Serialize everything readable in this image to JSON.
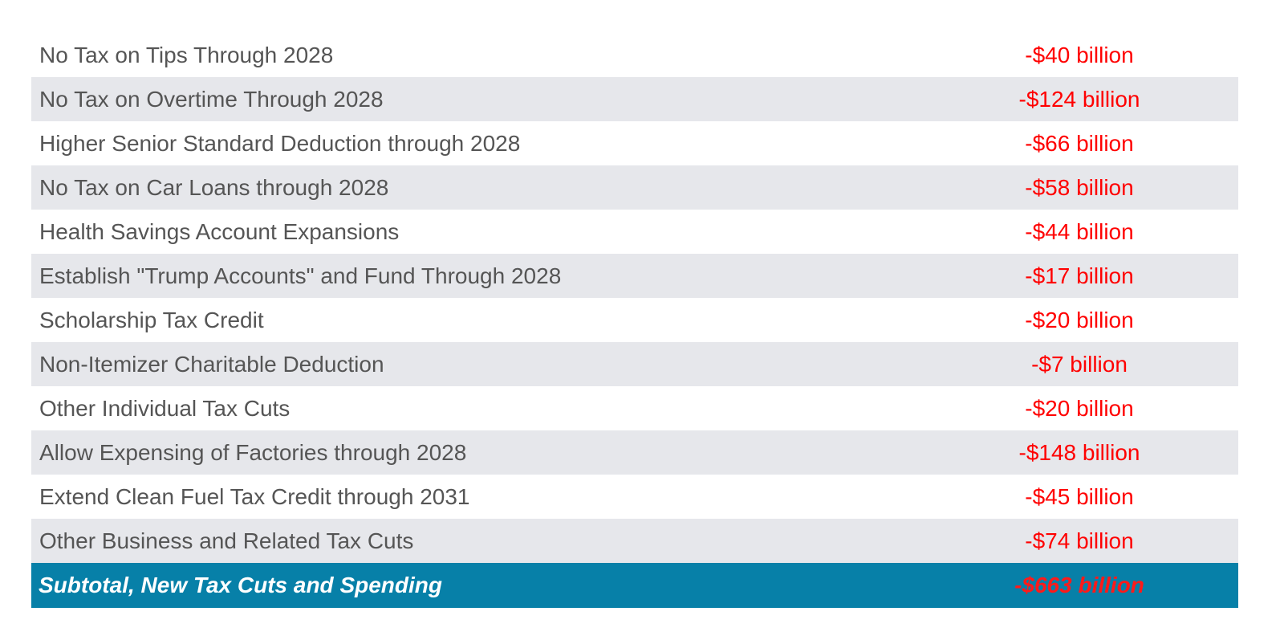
{
  "colors": {
    "shaded_row": "#e6e7eb",
    "label_text": "#555555",
    "value_text": "#ff0000",
    "subtotal_bg": "#0780a8",
    "subtotal_label": "#ffffff"
  },
  "rows": [
    {
      "label": "No Tax on Tips Through 2028",
      "value": "-$40 billion"
    },
    {
      "label": "No Tax on Overtime Through 2028",
      "value": "-$124 billion"
    },
    {
      "label": "Higher Senior Standard Deduction through 2028",
      "value": "-$66 billion"
    },
    {
      "label": "No Tax on Car Loans through 2028",
      "value": "-$58 billion"
    },
    {
      "label": "Health Savings Account Expansions",
      "value": "-$44 billion"
    },
    {
      "label": "Establish \"Trump Accounts\" and Fund Through 2028",
      "value": "-$17 billion"
    },
    {
      "label": "Scholarship Tax Credit",
      "value": "-$20 billion"
    },
    {
      "label": "Non-Itemizer Charitable Deduction",
      "value": "-$7 billion"
    },
    {
      "label": "Other Individual Tax Cuts",
      "value": "-$20 billion"
    },
    {
      "label": "Allow Expensing of Factories through 2028",
      "value": "-$148 billion"
    },
    {
      "label": "Extend Clean Fuel Tax Credit through 2031",
      "value": "-$45 billion"
    },
    {
      "label": "Other Business and Related Tax Cuts",
      "value": "-$74 billion"
    }
  ],
  "subtotal": {
    "label": "Subtotal, New Tax Cuts and Spending",
    "value": "-$663 billion"
  }
}
